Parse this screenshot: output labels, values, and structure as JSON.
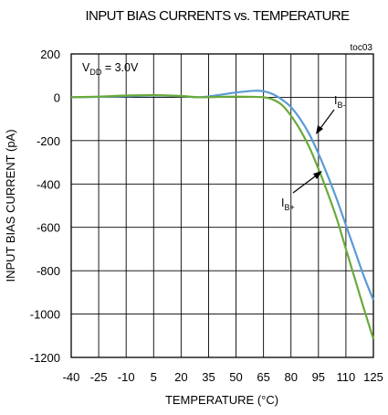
{
  "chart_data": {
    "type": "line",
    "title": "INPUT BIAS CURRENTS vs. TEMPERATURE",
    "chart_id": "toc03",
    "xlabel": "TEMPERATURE (°C)",
    "ylabel": "INPUT BIAS CURRENT (pA)",
    "xlim": [
      -40,
      125
    ],
    "ylim": [
      -1200,
      200
    ],
    "x_ticks": [
      -40,
      -25,
      -10,
      5,
      20,
      35,
      50,
      65,
      80,
      95,
      110,
      125
    ],
    "y_ticks": [
      200,
      0,
      -200,
      -400,
      -600,
      -800,
      -1000,
      -1200
    ],
    "grid": true,
    "condition": {
      "main": "V",
      "sub": "DD",
      "rest": " = 3.0V"
    },
    "series": [
      {
        "name_main": "I",
        "name_sub": "B-",
        "color": "#5b9bd5",
        "x": [
          -40,
          -25,
          -10,
          5,
          20,
          30,
          40,
          50,
          60,
          65,
          70,
          75,
          80,
          85,
          90,
          95,
          100,
          105,
          110,
          115,
          120,
          125
        ],
        "y": [
          0,
          2,
          5,
          8,
          5,
          0,
          10,
          22,
          30,
          28,
          15,
          -10,
          -45,
          -100,
          -170,
          -260,
          -360,
          -470,
          -590,
          -710,
          -830,
          -935
        ]
      },
      {
        "name_main": "I",
        "name_sub": "B+",
        "color": "#6aaa3a",
        "x": [
          -40,
          -25,
          -10,
          5,
          20,
          30,
          40,
          50,
          60,
          65,
          70,
          75,
          80,
          85,
          90,
          95,
          100,
          105,
          110,
          115,
          120,
          125
        ],
        "y": [
          0,
          3,
          8,
          10,
          6,
          0,
          2,
          3,
          2,
          0,
          -10,
          -35,
          -85,
          -150,
          -230,
          -330,
          -440,
          -560,
          -700,
          -840,
          -980,
          -1115
        ]
      }
    ]
  }
}
